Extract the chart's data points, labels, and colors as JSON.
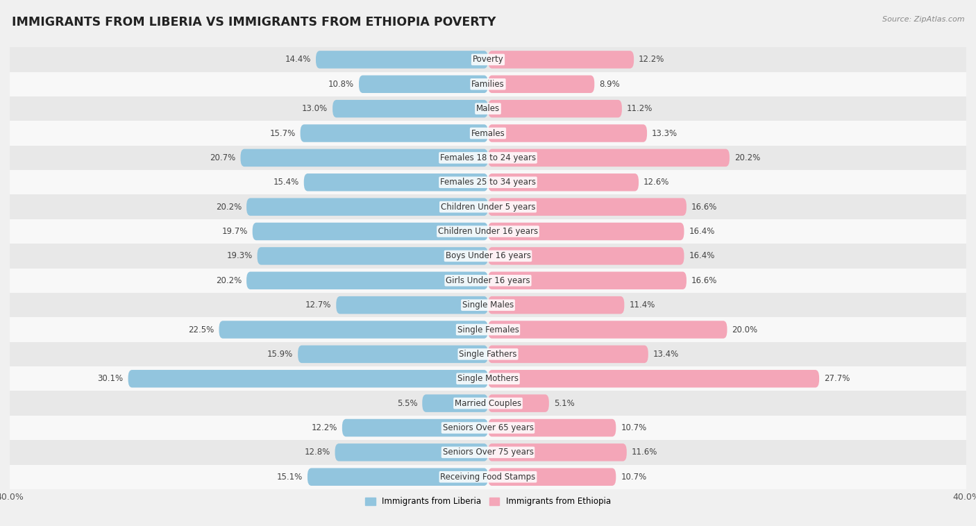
{
  "title": "IMMIGRANTS FROM LIBERIA VS IMMIGRANTS FROM ETHIOPIA POVERTY",
  "source": "Source: ZipAtlas.com",
  "categories": [
    "Poverty",
    "Families",
    "Males",
    "Females",
    "Females 18 to 24 years",
    "Females 25 to 34 years",
    "Children Under 5 years",
    "Children Under 16 years",
    "Boys Under 16 years",
    "Girls Under 16 years",
    "Single Males",
    "Single Females",
    "Single Fathers",
    "Single Mothers",
    "Married Couples",
    "Seniors Over 65 years",
    "Seniors Over 75 years",
    "Receiving Food Stamps"
  ],
  "liberia_values": [
    14.4,
    10.8,
    13.0,
    15.7,
    20.7,
    15.4,
    20.2,
    19.7,
    19.3,
    20.2,
    12.7,
    22.5,
    15.9,
    30.1,
    5.5,
    12.2,
    12.8,
    15.1
  ],
  "ethiopia_values": [
    12.2,
    8.9,
    11.2,
    13.3,
    20.2,
    12.6,
    16.6,
    16.4,
    16.4,
    16.6,
    11.4,
    20.0,
    13.4,
    27.7,
    5.1,
    10.7,
    11.6,
    10.7
  ],
  "liberia_color": "#92C5DE",
  "ethiopia_color": "#F4A6B8",
  "liberia_label": "Immigrants from Liberia",
  "ethiopia_label": "Immigrants from Ethiopia",
  "xlim": 40.0,
  "bar_height": 0.72,
  "bg_color": "#f0f0f0",
  "row_color_even": "#e8e8e8",
  "row_color_odd": "#f8f8f8",
  "title_fontsize": 12.5,
  "label_fontsize": 8.5,
  "value_fontsize": 8.5,
  "tick_fontsize": 9
}
